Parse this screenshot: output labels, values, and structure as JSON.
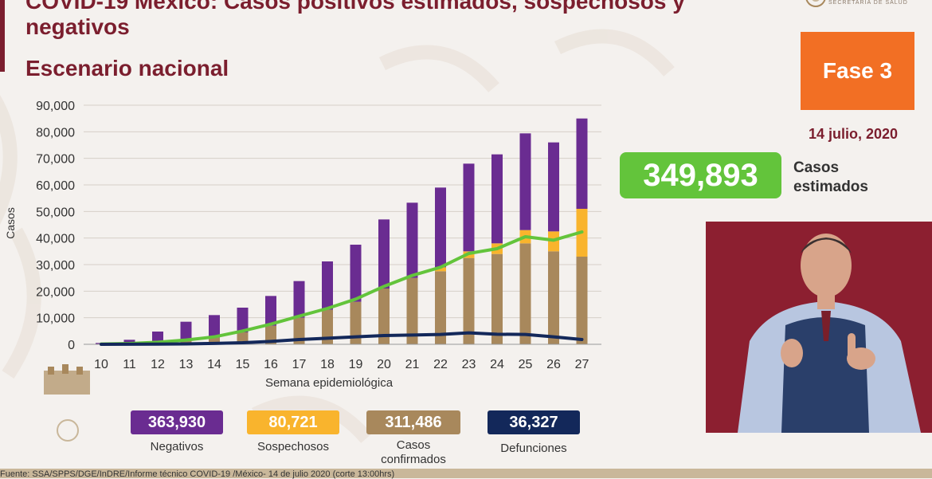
{
  "header": {
    "title": "COVID-19 México: Casos positivos estimados, sospechosos y negativos",
    "subtitle": "Escenario nacional",
    "logo_text": "SECRETARÍA DE SALUD"
  },
  "phase_badge": "Fase 3",
  "date": "14 julio, 2020",
  "estimated": {
    "value": "349,893",
    "label": "Casos estimados"
  },
  "stats": [
    {
      "value": "363,930",
      "label": "Negativos",
      "color": "#6a2c91"
    },
    {
      "value": "80,721",
      "label": "Sospechosos",
      "color": "#f9b42d"
    },
    {
      "value": "311,486",
      "label": "Casos confirmados",
      "color": "#a8885c"
    },
    {
      "value": "36,327",
      "label": "Defunciones",
      "color": "#13285a"
    }
  ],
  "footer": "Fuente: SSA/SPPS/DGE/InDRE/Informe técnico COVID-19 /México- 14 de julio 2020 (corte 13:00hrs)",
  "chart_data": {
    "type": "bar",
    "xlabel": "Semana epidemiológica",
    "ylabel": "Casos",
    "ylim": [
      0,
      90000
    ],
    "yticks": [
      "90,000",
      "80,000",
      "70,000",
      "60,000",
      "50,000",
      "40,000",
      "30,000",
      "20,000",
      "10,000",
      "0"
    ],
    "categories": [
      "10",
      "11",
      "12",
      "13",
      "14",
      "15",
      "16",
      "17",
      "18",
      "19",
      "20",
      "21",
      "22",
      "23",
      "24",
      "25",
      "26",
      "27"
    ],
    "series": [
      {
        "name": "Casos confirmados",
        "kind": "bar",
        "color": "#a8885c",
        "values": [
          100,
          300,
          800,
          1500,
          2500,
          4500,
          7000,
          10000,
          13000,
          16000,
          21000,
          25000,
          27500,
          32500,
          34000,
          38000,
          35000,
          33000
        ]
      },
      {
        "name": "Sospechosos",
        "kind": "bar",
        "color": "#f9b42d",
        "values": [
          0,
          0,
          0,
          0,
          0,
          0,
          0,
          0,
          0,
          0,
          0,
          0,
          1500,
          2500,
          4000,
          5000,
          7500,
          18000
        ]
      },
      {
        "name": "Negativos",
        "kind": "bar",
        "color": "#6a2c91",
        "values": [
          400,
          1400,
          4000,
          7000,
          8500,
          9300,
          11200,
          13800,
          18200,
          21500,
          26000,
          28300,
          30000,
          33000,
          33500,
          36400,
          33500,
          34000
        ]
      },
      {
        "name": "Casos estimados",
        "kind": "line",
        "color": "#63c43b",
        "values": [
          100,
          300,
          800,
          1600,
          2800,
          5000,
          7600,
          10600,
          13500,
          17000,
          21800,
          25900,
          29000,
          34200,
          36000,
          40500,
          39200,
          42300
        ]
      },
      {
        "name": "Defunciones",
        "kind": "line",
        "color": "#13285a",
        "values": [
          0,
          20,
          60,
          150,
          350,
          600,
          1100,
          1800,
          2300,
          2800,
          3300,
          3500,
          3700,
          4300,
          3800,
          3700,
          2800,
          1800
        ]
      }
    ]
  }
}
